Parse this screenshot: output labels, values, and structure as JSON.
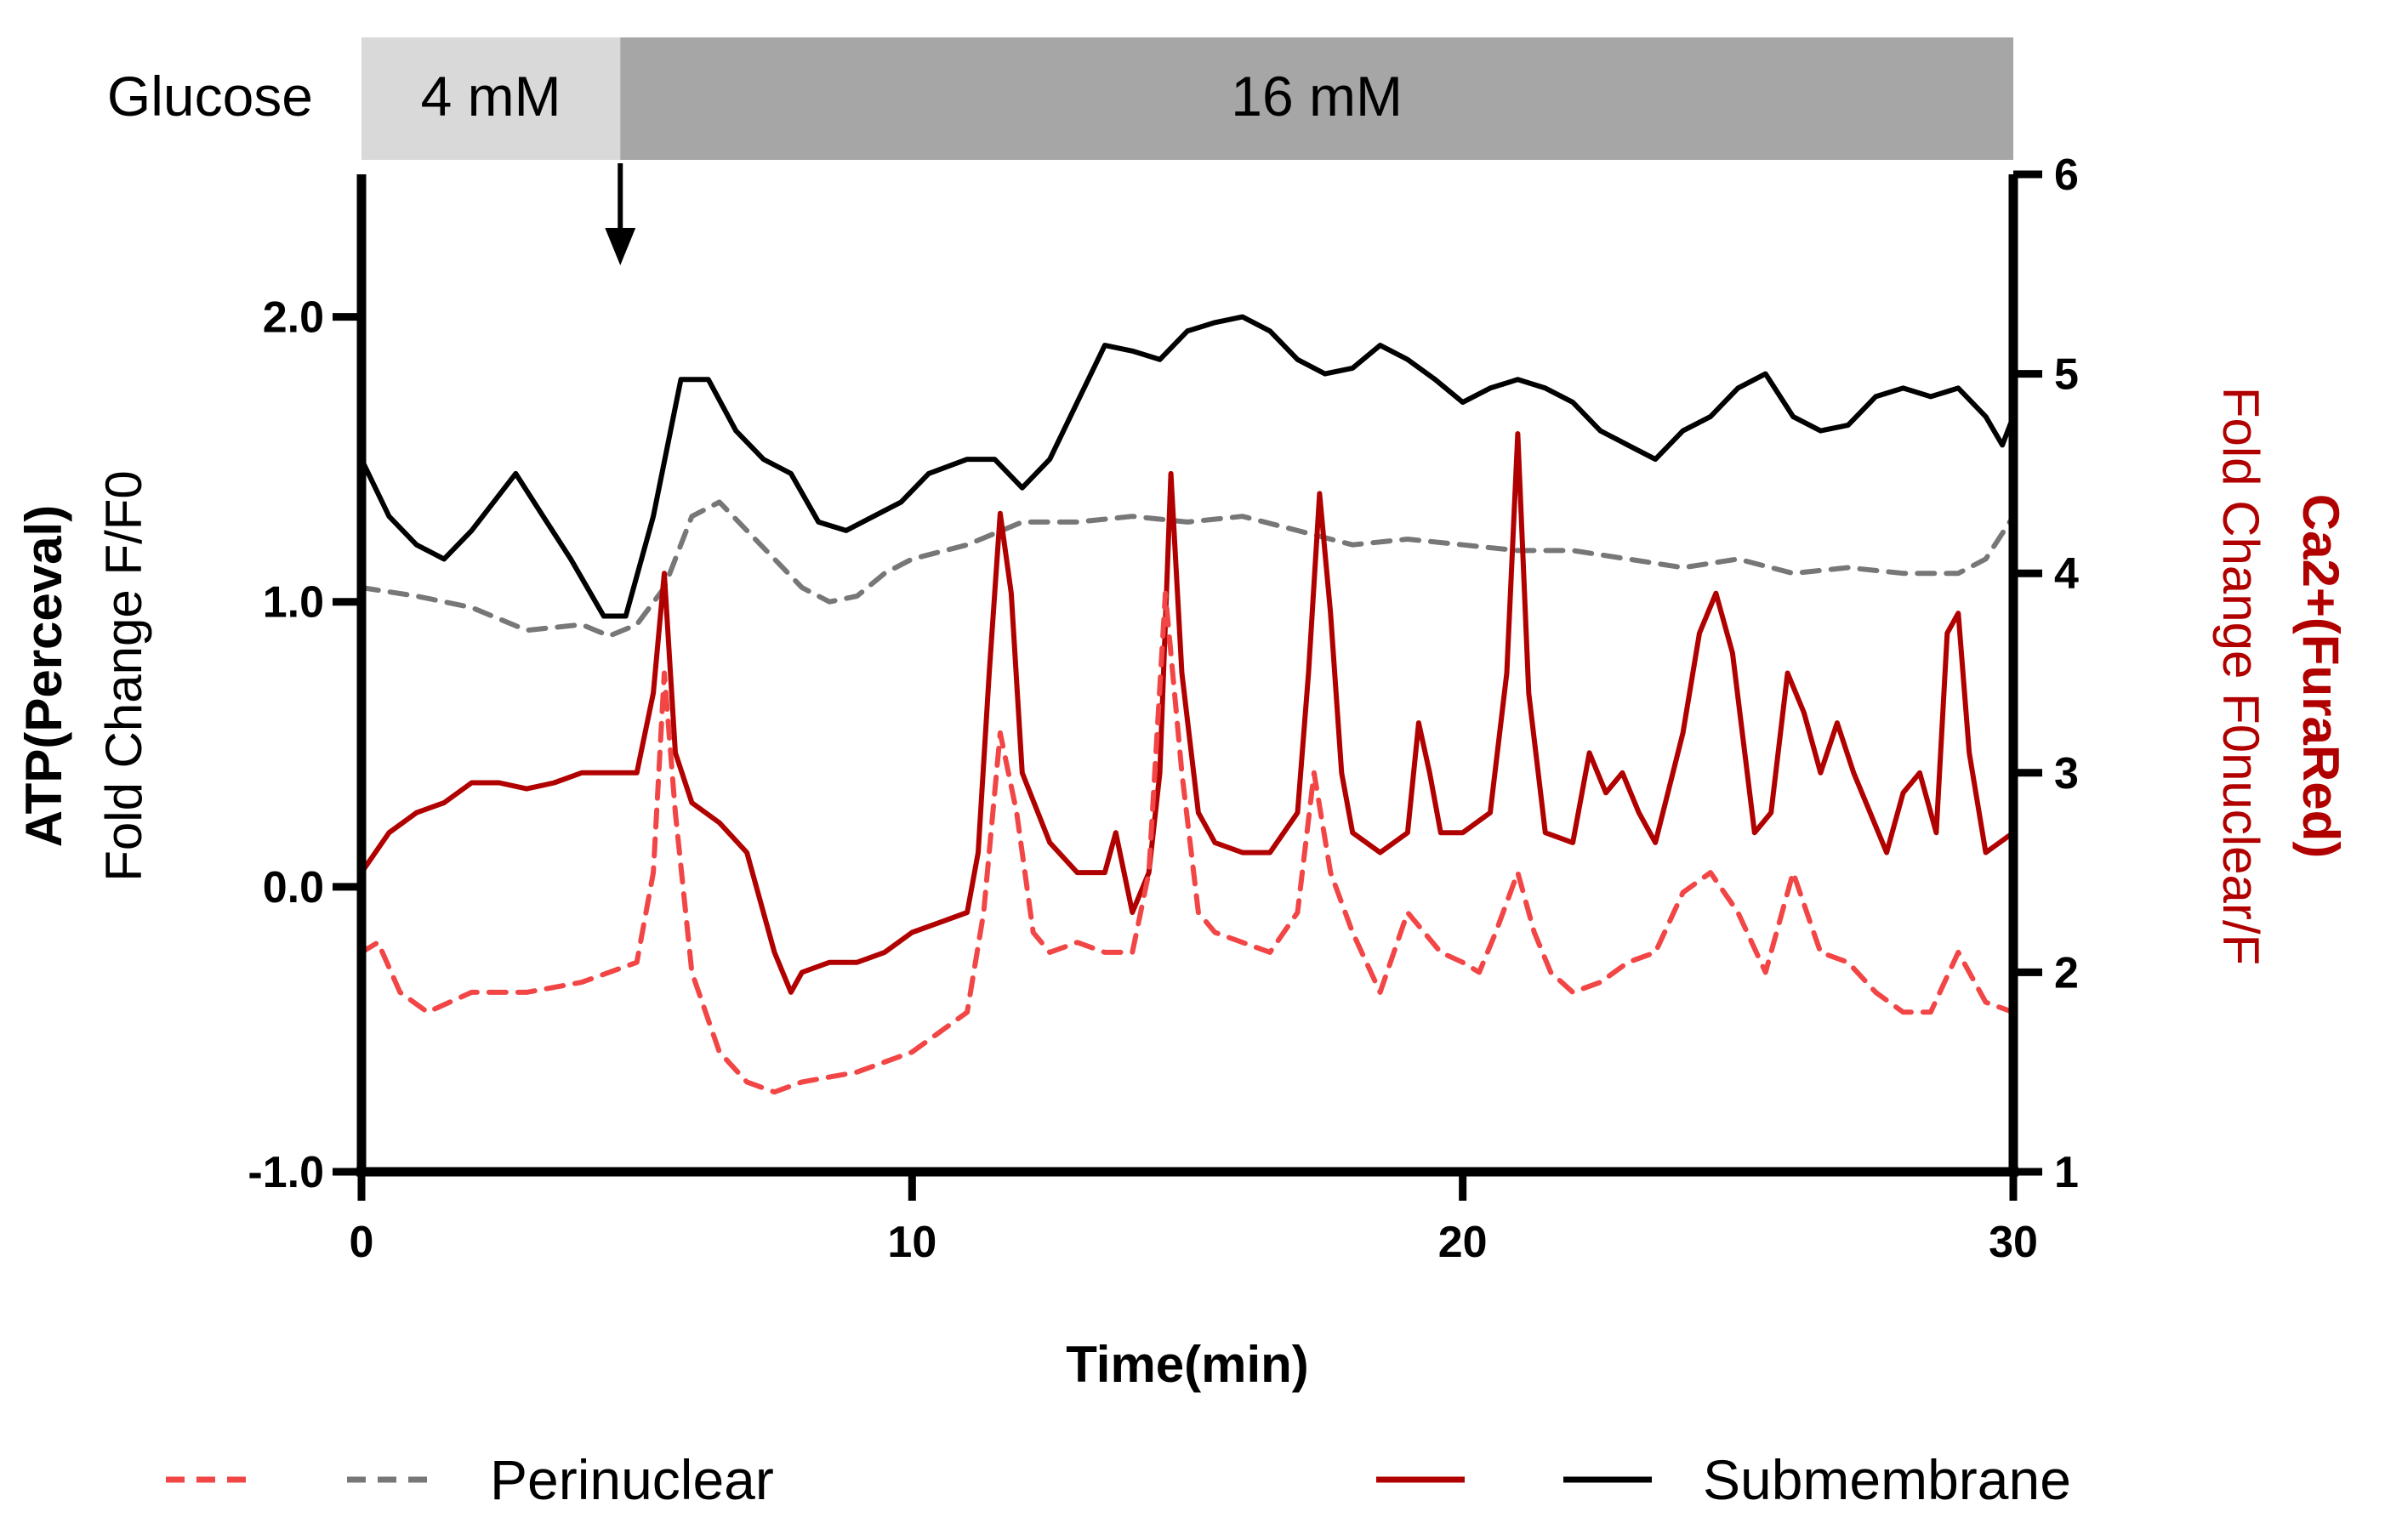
{
  "chart_data": {
    "type": "line",
    "condition_bar": {
      "label": "Glucose",
      "segments": [
        {
          "label": "4 mM",
          "from": 0,
          "to": 4.7,
          "color": "#d9d9d9"
        },
        {
          "label": "16 mM",
          "from": 4.7,
          "to": 30,
          "color": "#a6a6a6"
        }
      ],
      "arrow_at": 4.7
    },
    "xlabel": "Time(min)",
    "xlim": [
      0,
      30
    ],
    "xticks": [
      {
        "v": 0,
        "label": "0"
      },
      {
        "v": 10,
        "label": "10"
      },
      {
        "v": 20,
        "label": "20"
      },
      {
        "v": 30,
        "label": "30"
      }
    ],
    "y_left": {
      "label_bold": "ATP(Perceval)",
      "label_normal": "Fold Change F/F0",
      "color": "#000000",
      "lim": [
        -1.0,
        2.5
      ],
      "ticks": [
        {
          "v": -1.0,
          "label": "-1.0"
        },
        {
          "v": 0.0,
          "label": "0.0"
        },
        {
          "v": 1.0,
          "label": "1.0"
        },
        {
          "v": 2.0,
          "label": "2.0"
        }
      ]
    },
    "y_right": {
      "label_bold": "Ca2+(FuraRed)",
      "label_normal": "Fold Change F0nuclear/F",
      "color": "#b10000",
      "lim": [
        1,
        6
      ],
      "ticks": [
        {
          "v": 1,
          "label": "1"
        },
        {
          "v": 2,
          "label": "2"
        },
        {
          "v": 3,
          "label": "3"
        },
        {
          "v": 4,
          "label": "4"
        },
        {
          "v": 5,
          "label": "5"
        },
        {
          "v": 6,
          "label": "6"
        }
      ]
    },
    "series": [
      {
        "name": "ATP Submembrane",
        "axis": "left",
        "color": "#000000",
        "dash": false,
        "x": [
          0,
          0.5,
          1.0,
          1.5,
          2.0,
          2.8,
          3.3,
          3.8,
          4.4,
          4.8,
          5.3,
          5.8,
          6.3,
          6.8,
          7.3,
          7.8,
          8.3,
          8.8,
          9.3,
          9.8,
          10.3,
          11.0,
          11.5,
          12.0,
          12.5,
          13.0,
          13.5,
          14.0,
          14.5,
          15.0,
          15.5,
          16.0,
          16.5,
          17.0,
          17.5,
          18.0,
          18.5,
          19.0,
          19.5,
          20.0,
          20.5,
          21.0,
          21.5,
          22.0,
          22.5,
          23.0,
          23.5,
          24.0,
          24.5,
          25.0,
          25.5,
          26.0,
          26.5,
          27.0,
          27.5,
          28.0,
          28.5,
          29.0,
          29.5,
          29.8,
          30
        ],
        "values": [
          1.5,
          1.3,
          1.2,
          1.15,
          1.25,
          1.45,
          1.3,
          1.15,
          0.95,
          0.95,
          1.3,
          1.78,
          1.78,
          1.6,
          1.5,
          1.45,
          1.28,
          1.25,
          1.3,
          1.35,
          1.45,
          1.5,
          1.5,
          1.4,
          1.5,
          1.7,
          1.9,
          1.88,
          1.85,
          1.95,
          1.98,
          2.0,
          1.95,
          1.85,
          1.8,
          1.82,
          1.9,
          1.85,
          1.78,
          1.7,
          1.75,
          1.78,
          1.75,
          1.7,
          1.6,
          1.55,
          1.5,
          1.6,
          1.65,
          1.75,
          1.8,
          1.65,
          1.6,
          1.62,
          1.72,
          1.75,
          1.72,
          1.75,
          1.65,
          1.55,
          1.65
        ]
      },
      {
        "name": "ATP Perinuclear",
        "axis": "left",
        "color": "#777777",
        "dash": true,
        "x": [
          0,
          1,
          2,
          3,
          4,
          4.5,
          5,
          5.5,
          6,
          6.5,
          7,
          7.5,
          8,
          8.5,
          9,
          9.5,
          10,
          11,
          12,
          13,
          14,
          15,
          16,
          17,
          18,
          19,
          20,
          21,
          22,
          23,
          24,
          25,
          26,
          27,
          28,
          29,
          29.5,
          30
        ],
        "values": [
          1.05,
          1.02,
          0.98,
          0.9,
          0.92,
          0.88,
          0.92,
          1.05,
          1.3,
          1.35,
          1.25,
          1.15,
          1.05,
          1.0,
          1.02,
          1.1,
          1.15,
          1.2,
          1.28,
          1.28,
          1.3,
          1.28,
          1.3,
          1.25,
          1.2,
          1.22,
          1.2,
          1.18,
          1.18,
          1.15,
          1.12,
          1.15,
          1.1,
          1.12,
          1.1,
          1.1,
          1.15,
          1.3
        ]
      },
      {
        "name": "Ca2+ Submembrane",
        "axis": "right",
        "color": "#b10000",
        "dash": false,
        "x": [
          0,
          0.5,
          1,
          1.5,
          2,
          2.5,
          3,
          3.5,
          4,
          4.5,
          5,
          5.3,
          5.5,
          5.7,
          6,
          6.5,
          7,
          7.5,
          7.8,
          8,
          8.5,
          9,
          9.5,
          10,
          10.5,
          11,
          11.2,
          11.4,
          11.6,
          11.8,
          12,
          12.5,
          13,
          13.5,
          13.7,
          14,
          14.3,
          14.5,
          14.7,
          14.9,
          15.2,
          15.5,
          16,
          16.5,
          17,
          17.2,
          17.4,
          17.6,
          17.8,
          18,
          18.5,
          19,
          19.2,
          19.4,
          19.6,
          20,
          20.5,
          20.8,
          21,
          21.2,
          21.5,
          22,
          22.3,
          22.6,
          22.9,
          23.2,
          23.5,
          24,
          24.3,
          24.6,
          24.9,
          25.3,
          25.6,
          25.9,
          26.2,
          26.5,
          26.8,
          27.1,
          27.4,
          27.7,
          28,
          28.3,
          28.6,
          28.8,
          29,
          29.2,
          29.5,
          30
        ],
        "values": [
          2.5,
          2.7,
          2.8,
          2.85,
          2.95,
          2.95,
          2.92,
          2.95,
          3.0,
          3.0,
          3.0,
          3.4,
          4.0,
          3.1,
          2.85,
          2.75,
          2.6,
          2.1,
          1.9,
          2.0,
          2.05,
          2.05,
          2.1,
          2.2,
          2.25,
          2.3,
          2.6,
          3.5,
          4.3,
          3.9,
          3.0,
          2.65,
          2.5,
          2.5,
          2.7,
          2.3,
          2.5,
          3.0,
          4.5,
          3.5,
          2.8,
          2.65,
          2.6,
          2.6,
          2.8,
          3.5,
          4.4,
          3.8,
          3.0,
          2.7,
          2.6,
          2.7,
          3.25,
          3.0,
          2.7,
          2.7,
          2.8,
          3.5,
          4.7,
          3.4,
          2.7,
          2.65,
          3.1,
          2.9,
          3.0,
          2.8,
          2.65,
          3.2,
          3.7,
          3.9,
          3.6,
          2.7,
          2.8,
          3.5,
          3.3,
          3.0,
          3.25,
          3.0,
          2.8,
          2.6,
          2.9,
          3.0,
          2.7,
          3.7,
          3.8,
          3.1,
          2.6,
          2.7
        ]
      },
      {
        "name": "Ca2+ Perinuclear",
        "axis": "right",
        "color": "#f24545",
        "dash": true,
        "x": [
          0,
          0.3,
          0.7,
          1.2,
          2,
          3,
          4,
          4.5,
          5,
          5.3,
          5.5,
          5.7,
          6,
          6.5,
          7,
          7.5,
          8,
          9,
          10,
          11,
          11.3,
          11.6,
          11.9,
          12.2,
          12.5,
          13,
          13.5,
          14,
          14.3,
          14.6,
          14.9,
          15.2,
          15.5,
          16,
          16.5,
          17,
          17.3,
          17.6,
          18,
          18.5,
          19,
          19.3,
          19.6,
          20,
          20.3,
          20.6,
          21,
          21.3,
          21.6,
          22,
          22.5,
          23,
          23.5,
          24,
          24.5,
          25,
          25.5,
          26,
          26.5,
          27,
          27.5,
          28,
          28.5,
          29,
          29.5,
          30
        ],
        "values": [
          2.1,
          2.15,
          1.9,
          1.8,
          1.9,
          1.9,
          1.95,
          2.0,
          2.05,
          2.5,
          3.5,
          2.8,
          2.0,
          1.6,
          1.45,
          1.4,
          1.45,
          1.5,
          1.6,
          1.8,
          2.3,
          3.2,
          2.8,
          2.2,
          2.1,
          2.15,
          2.1,
          2.1,
          2.5,
          3.9,
          3.0,
          2.3,
          2.2,
          2.15,
          2.1,
          2.3,
          3.0,
          2.5,
          2.2,
          1.9,
          2.3,
          2.2,
          2.1,
          2.05,
          2.0,
          2.2,
          2.5,
          2.2,
          2.0,
          1.9,
          1.95,
          2.05,
          2.1,
          2.4,
          2.5,
          2.3,
          2.0,
          2.5,
          2.1,
          2.05,
          1.9,
          1.8,
          1.8,
          2.1,
          1.85,
          1.8
        ]
      }
    ],
    "legend": [
      {
        "label": "Perinuclear",
        "colors": [
          "#f24545",
          "#777777"
        ],
        "dash": true
      },
      {
        "label": "Submembrane",
        "colors": [
          "#b10000",
          "#000000"
        ],
        "dash": false
      }
    ]
  }
}
